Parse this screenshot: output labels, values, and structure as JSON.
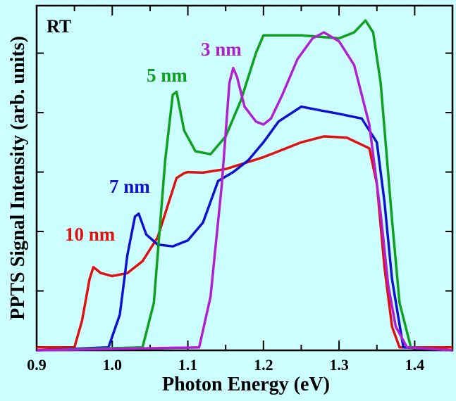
{
  "chart_data": {
    "type": "line",
    "title": "",
    "annotation": "RT",
    "xlabel": "Photon Energy (eV)",
    "ylabel": "PPTS Signal Intensity (arb. units)",
    "xlim": [
      0.9,
      1.45
    ],
    "ylim": [
      0,
      5.8
    ],
    "x_ticks": [
      "0.9",
      "1.0",
      "1.1",
      "1.2",
      "1.3",
      "1.4"
    ],
    "x_tick_values": [
      0.9,
      1.0,
      1.1,
      1.2,
      1.3,
      1.4
    ],
    "y_tick_values": [
      1,
      2,
      3,
      4,
      5
    ],
    "y_tick_labels_visible": false,
    "grid": false,
    "background": "#ccffff",
    "series": [
      {
        "name": "10 nm",
        "color": "#e01010",
        "x": [
          0.9,
          0.95,
          0.96,
          0.97,
          0.975,
          0.985,
          1.0,
          1.02,
          1.04,
          1.06,
          1.075,
          1.085,
          1.095,
          1.1,
          1.12,
          1.15,
          1.2,
          1.25,
          1.28,
          1.31,
          1.34,
          1.35,
          1.36,
          1.37,
          1.38,
          1.4,
          1.45
        ],
        "y": [
          0.05,
          0.05,
          0.5,
          1.2,
          1.4,
          1.3,
          1.25,
          1.3,
          1.5,
          1.9,
          2.5,
          2.9,
          2.98,
          3.0,
          2.99,
          3.05,
          3.25,
          3.5,
          3.6,
          3.58,
          3.4,
          2.8,
          1.4,
          0.4,
          0.05,
          0.05,
          0.05
        ]
      },
      {
        "name": "7 nm",
        "color": "#1010d0",
        "x": [
          0.9,
          0.995,
          1.01,
          1.02,
          1.03,
          1.035,
          1.045,
          1.06,
          1.08,
          1.1,
          1.12,
          1.14,
          1.16,
          1.18,
          1.2,
          1.22,
          1.25,
          1.27,
          1.3,
          1.33,
          1.35,
          1.36,
          1.37,
          1.385,
          1.45
        ],
        "y": [
          0.0,
          0.05,
          0.6,
          1.6,
          2.25,
          2.3,
          1.95,
          1.78,
          1.75,
          1.85,
          2.15,
          2.85,
          3.0,
          3.2,
          3.5,
          3.85,
          4.1,
          4.05,
          3.98,
          3.9,
          3.5,
          2.5,
          1.2,
          0.05,
          0.0
        ]
      },
      {
        "name": "5 nm",
        "color": "#10a020",
        "x": [
          0.9,
          1.04,
          1.055,
          1.07,
          1.08,
          1.085,
          1.095,
          1.11,
          1.13,
          1.15,
          1.17,
          1.19,
          1.2,
          1.25,
          1.3,
          1.32,
          1.335,
          1.345,
          1.355,
          1.37,
          1.38,
          1.395,
          1.45
        ],
        "y": [
          0.0,
          0.05,
          0.8,
          3.2,
          4.3,
          4.35,
          3.7,
          3.35,
          3.3,
          3.6,
          4.2,
          5.0,
          5.3,
          5.3,
          5.25,
          5.35,
          5.55,
          5.35,
          4.5,
          2.2,
          0.8,
          0.05,
          0.0
        ]
      },
      {
        "name": "3 nm",
        "color": "#b020d0",
        "x": [
          0.9,
          1.115,
          1.13,
          1.145,
          1.155,
          1.16,
          1.165,
          1.175,
          1.19,
          1.2,
          1.21,
          1.225,
          1.245,
          1.265,
          1.28,
          1.3,
          1.32,
          1.34,
          1.355,
          1.365,
          1.375,
          1.39,
          1.45
        ],
        "y": [
          0.0,
          0.05,
          0.9,
          2.8,
          4.5,
          4.75,
          4.6,
          4.1,
          3.85,
          3.8,
          3.9,
          4.3,
          4.9,
          5.25,
          5.35,
          5.2,
          4.8,
          3.8,
          2.3,
          1.1,
          0.4,
          0.05,
          0.0
        ]
      }
    ]
  }
}
